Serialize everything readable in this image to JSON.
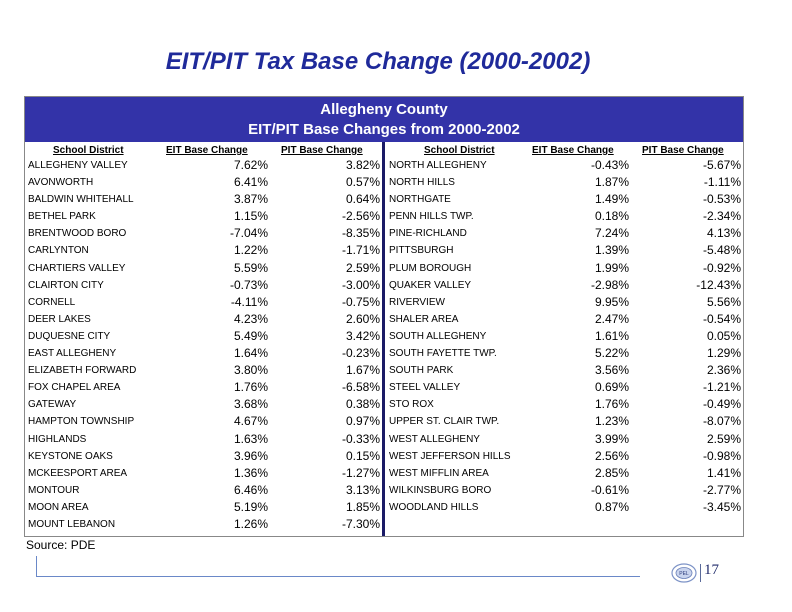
{
  "slide": {
    "title": "EIT/PIT Tax Base Change (2000-2002)",
    "source": "Source: PDE",
    "page_number": "17"
  },
  "banner": {
    "line1": "Allegheny County",
    "line2": "EIT/PIT Base Changes from 2000-2002"
  },
  "columns": {
    "district": "School District",
    "eit": "EIT Base Change",
    "pit": "PIT Base Change"
  },
  "left_rows": [
    {
      "name": "ALLEGHENY VALLEY",
      "eit": "7.62%",
      "pit": "3.82%"
    },
    {
      "name": "AVONWORTH",
      "eit": "6.41%",
      "pit": "0.57%"
    },
    {
      "name": "BALDWIN WHITEHALL",
      "eit": "3.87%",
      "pit": "0.64%"
    },
    {
      "name": "BETHEL PARK",
      "eit": "1.15%",
      "pit": "-2.56%"
    },
    {
      "name": "BRENTWOOD BORO",
      "eit": "-7.04%",
      "pit": "-8.35%"
    },
    {
      "name": "CARLYNTON",
      "eit": "1.22%",
      "pit": "-1.71%"
    },
    {
      "name": "CHARTIERS VALLEY",
      "eit": "5.59%",
      "pit": "2.59%"
    },
    {
      "name": "CLAIRTON CITY",
      "eit": "-0.73%",
      "pit": "-3.00%"
    },
    {
      "name": "CORNELL",
      "eit": "-4.11%",
      "pit": "-0.75%"
    },
    {
      "name": "DEER LAKES",
      "eit": "4.23%",
      "pit": "2.60%"
    },
    {
      "name": "DUQUESNE CITY",
      "eit": "5.49%",
      "pit": "3.42%"
    },
    {
      "name": "EAST ALLEGHENY",
      "eit": "1.64%",
      "pit": "-0.23%"
    },
    {
      "name": "ELIZABETH FORWARD",
      "eit": "3.80%",
      "pit": "1.67%"
    },
    {
      "name": "FOX CHAPEL AREA",
      "eit": "1.76%",
      "pit": "-6.58%"
    },
    {
      "name": "GATEWAY",
      "eit": "3.68%",
      "pit": "0.38%"
    },
    {
      "name": "HAMPTON TOWNSHIP",
      "eit": "4.67%",
      "pit": "0.97%"
    },
    {
      "name": "HIGHLANDS",
      "eit": "1.63%",
      "pit": "-0.33%"
    },
    {
      "name": "KEYSTONE OAKS",
      "eit": "3.96%",
      "pit": "0.15%"
    },
    {
      "name": "MCKEESPORT AREA",
      "eit": "1.36%",
      "pit": "-1.27%"
    },
    {
      "name": "MONTOUR",
      "eit": "6.46%",
      "pit": "3.13%"
    },
    {
      "name": "MOON AREA",
      "eit": "5.19%",
      "pit": "1.85%"
    },
    {
      "name": "MOUNT LEBANON",
      "eit": "1.26%",
      "pit": "-7.30%"
    }
  ],
  "right_rows": [
    {
      "name": "NORTH ALLEGHENY",
      "eit": "-0.43%",
      "pit": "-5.67%"
    },
    {
      "name": "NORTH HILLS",
      "eit": "1.87%",
      "pit": "-1.11%"
    },
    {
      "name": "NORTHGATE",
      "eit": "1.49%",
      "pit": "-0.53%"
    },
    {
      "name": "PENN HILLS TWP.",
      "eit": "0.18%",
      "pit": "-2.34%"
    },
    {
      "name": "PINE-RICHLAND",
      "eit": "7.24%",
      "pit": "4.13%"
    },
    {
      "name": "PITTSBURGH",
      "eit": "1.39%",
      "pit": "-5.48%"
    },
    {
      "name": "PLUM BOROUGH",
      "eit": "1.99%",
      "pit": "-0.92%"
    },
    {
      "name": "QUAKER VALLEY",
      "eit": "-2.98%",
      "pit": "-12.43%"
    },
    {
      "name": "RIVERVIEW",
      "eit": "9.95%",
      "pit": "5.56%"
    },
    {
      "name": "SHALER AREA",
      "eit": "2.47%",
      "pit": "-0.54%"
    },
    {
      "name": "SOUTH ALLEGHENY",
      "eit": "1.61%",
      "pit": "0.05%"
    },
    {
      "name": "SOUTH FAYETTE TWP.",
      "eit": "5.22%",
      "pit": "1.29%"
    },
    {
      "name": "SOUTH PARK",
      "eit": "3.56%",
      "pit": "2.36%"
    },
    {
      "name": "STEEL VALLEY",
      "eit": "0.69%",
      "pit": "-1.21%"
    },
    {
      "name": "STO ROX",
      "eit": "1.76%",
      "pit": "-0.49%"
    },
    {
      "name": "UPPER ST. CLAIR TWP.",
      "eit": "1.23%",
      "pit": "-8.07%"
    },
    {
      "name": "WEST ALLEGHENY",
      "eit": "3.99%",
      "pit": "2.59%"
    },
    {
      "name": "WEST JEFFERSON HILLS",
      "eit": "2.56%",
      "pit": "-0.98%"
    },
    {
      "name": "WEST MIFFLIN AREA",
      "eit": "2.85%",
      "pit": "1.41%"
    },
    {
      "name": "WILKINSBURG BORO",
      "eit": "-0.61%",
      "pit": "-2.77%"
    },
    {
      "name": "WOODLAND HILLS",
      "eit": "0.87%",
      "pit": "-3.45%"
    }
  ],
  "colors": {
    "title": "#1f2a9a",
    "banner": "#3333a8",
    "divider": "#1a1a66"
  },
  "logo": {
    "icon": "pel-logo-icon"
  }
}
